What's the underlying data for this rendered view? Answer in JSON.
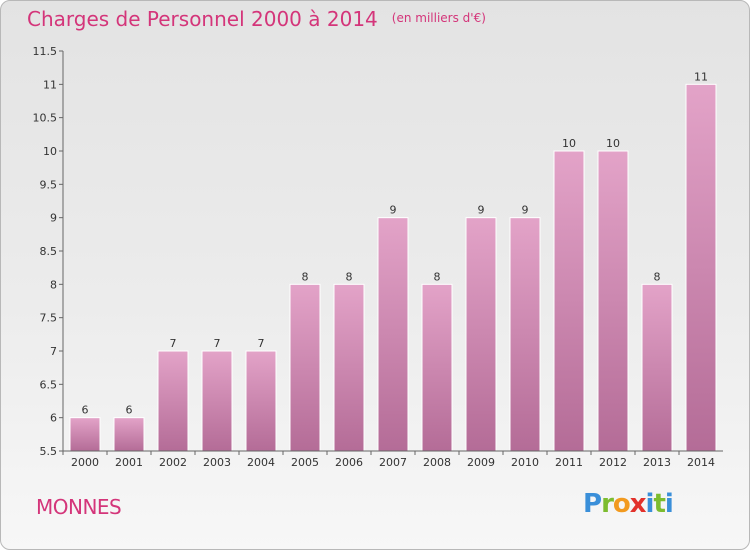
{
  "header": {
    "title": "Charges de Personnel 2000 à 2014",
    "subtitle": "(en milliers d'€)"
  },
  "commune": "MONNES",
  "logo": {
    "text": "Proxiti"
  },
  "colors": {
    "accent": "#d4357a",
    "bar_top": "#e3a3c8",
    "bar_bottom": "#b46c97"
  },
  "chart_data": {
    "type": "bar",
    "title": "Charges de Personnel 2000 à 2014",
    "subtitle": "(en milliers d'€)",
    "categories": [
      "2000",
      "2001",
      "2002",
      "2003",
      "2004",
      "2005",
      "2006",
      "2007",
      "2008",
      "2009",
      "2010",
      "2011",
      "2012",
      "2013",
      "2014"
    ],
    "values": [
      6,
      6,
      7,
      7,
      7,
      8,
      8,
      9,
      8,
      9,
      9,
      10,
      10,
      8,
      11
    ],
    "data_labels": [
      "6",
      "6",
      "7",
      "7",
      "7",
      "8",
      "8",
      "9",
      "8",
      "9",
      "9",
      "10",
      "10",
      "8",
      "11"
    ],
    "yticks": [
      "5.5",
      "6",
      "6.5",
      "7",
      "7.5",
      "8",
      "8.5",
      "9",
      "9.5",
      "10",
      "10.5",
      "11",
      "11.5"
    ],
    "ylim": [
      5.5,
      11.5
    ],
    "grid": false
  }
}
